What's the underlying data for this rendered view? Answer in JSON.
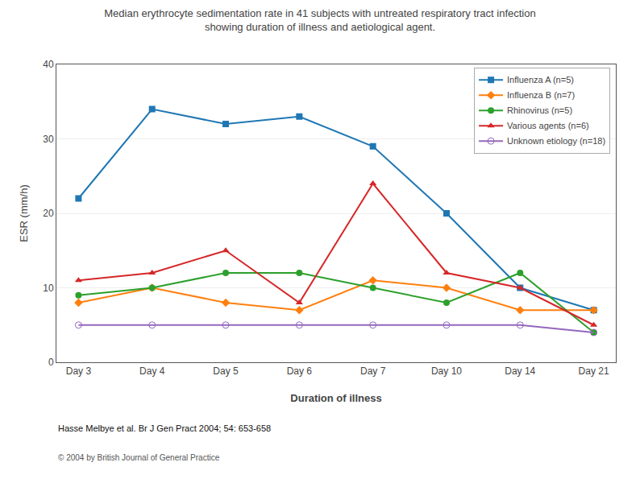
{
  "chart_data": {
    "type": "line",
    "title": "Median erythrocyte sedimentation rate in 41 subjects with untreated respiratory tract infection",
    "subtitle": "showing duration of illness and aetiological agent.",
    "x_label": "Duration of illness",
    "y_label": "ESR (mm/h)",
    "categories": [
      "Day 3",
      "Day 4",
      "Day 5",
      "Day 6",
      "Day 7",
      "Day 10",
      "Day 14",
      "Day 21"
    ],
    "series": [
      {
        "name": "Influenza A (n=5)",
        "values": [
          22,
          34,
          32,
          33,
          29,
          20,
          10,
          7
        ],
        "marker": "square",
        "line_style": "solid"
      },
      {
        "name": "Influenza B (n=7)",
        "values": [
          8,
          10,
          8,
          7,
          11,
          10,
          7,
          7
        ],
        "marker": "diamond",
        "line_style": "solid"
      },
      {
        "name": "Rhinovirus (n=5)",
        "values": [
          9,
          10,
          12,
          12,
          10,
          8,
          12,
          4
        ],
        "marker": "circle",
        "line_style": "solid"
      },
      {
        "name": "Various agents (n=6)",
        "values": [
          11,
          12,
          15,
          8,
          24,
          12,
          10,
          5
        ],
        "marker": "triangle-up",
        "line_style": "solid"
      },
      {
        "name": "Unknown etiology (n=18)",
        "values": [
          5,
          5,
          5,
          5,
          5,
          5,
          5,
          4
        ],
        "marker": "circle-open",
        "line_style": "solid"
      }
    ],
    "ylim": [
      0,
      40
    ],
    "yticks": [
      0,
      10,
      20,
      30,
      40
    ],
    "grid": true,
    "legend": "upper right",
    "annotations": [
      "Hasse Melbye et al. Br J Gen Pract 2004; 54: 653-658",
      "© 2004 by British Journal of General Practice"
    ]
  }
}
